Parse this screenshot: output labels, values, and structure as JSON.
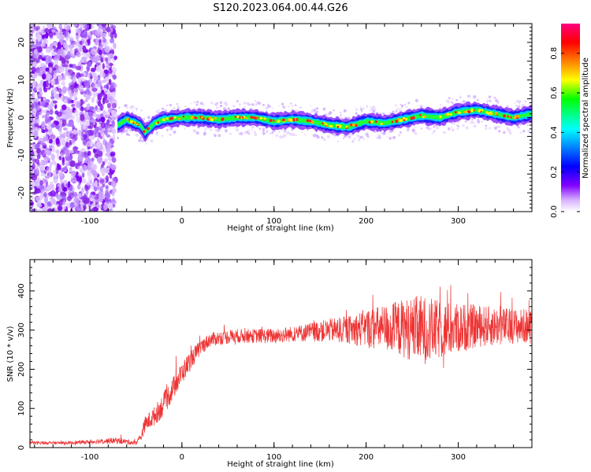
{
  "title": "S120.2023.064.00.44.G26",
  "chart_data": [
    {
      "type": "heatmap",
      "xlabel": "Height of straight line (km)",
      "ylabel": "Frequency (Hz)",
      "xlim": [
        -165,
        380
      ],
      "ylim": [
        -25,
        25
      ],
      "xticks": [
        -100,
        0,
        100,
        200,
        300
      ],
      "yticks": [
        -20,
        -10,
        0,
        10,
        20
      ],
      "colorbar": {
        "label": "Normalized spectral amplitude",
        "range": [
          0,
          0.95
        ],
        "ticks": [
          0.0,
          0.2,
          0.4,
          0.6,
          0.8
        ]
      },
      "noise_region_x": [
        -165,
        -72
      ],
      "ridge": {
        "x": [
          -70,
          -60,
          -45,
          -40,
          -30,
          -20,
          -10,
          0,
          20,
          40,
          60,
          80,
          100,
          120,
          140,
          160,
          180,
          200,
          220,
          240,
          260,
          280,
          300,
          320,
          340,
          360,
          380
        ],
        "frequency": [
          -2.0,
          -0.5,
          -2.0,
          -4.0,
          -1.5,
          -0.5,
          -0.3,
          0.0,
          0.0,
          -0.5,
          0.0,
          0.0,
          -1.0,
          -0.5,
          -1.0,
          -2.0,
          -2.5,
          -1.0,
          -1.5,
          -0.5,
          0.5,
          0.0,
          1.5,
          2.0,
          1.0,
          0.0,
          1.0
        ]
      }
    },
    {
      "type": "line",
      "xlabel": "Height of straight line (km)",
      "ylabel": "SNR (10 * v/v)",
      "xlim": [
        -165,
        380
      ],
      "ylim": [
        0,
        480
      ],
      "xticks": [
        -100,
        0,
        100,
        200,
        300
      ],
      "yticks": [
        0,
        100,
        200,
        300,
        400
      ],
      "series": [
        {
          "color": "#ee3333",
          "x": [
            -165,
            -120,
            -90,
            -70,
            -50,
            -45,
            -40,
            -30,
            -20,
            -10,
            0,
            10,
            20,
            30,
            40,
            60,
            80,
            100,
            120,
            140,
            160,
            180,
            200,
            220,
            240,
            260,
            280,
            300,
            320,
            340,
            360,
            380
          ],
          "y": [
            12,
            12,
            16,
            18,
            12,
            25,
            60,
            80,
            110,
            150,
            190,
            225,
            255,
            275,
            280,
            285,
            285,
            285,
            290,
            295,
            300,
            300,
            305,
            305,
            305,
            300,
            300,
            305,
            310,
            310,
            310,
            310
          ],
          "spread": [
            4,
            4,
            6,
            8,
            6,
            12,
            20,
            25,
            30,
            30,
            28,
            25,
            20,
            18,
            18,
            18,
            18,
            20,
            20,
            25,
            30,
            35,
            50,
            60,
            75,
            90,
            75,
            65,
            55,
            50,
            45,
            45
          ]
        }
      ]
    }
  ]
}
